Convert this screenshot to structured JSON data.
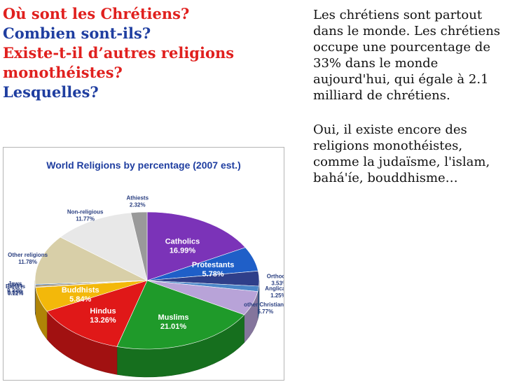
{
  "questions": [
    {
      "text": "Où sont les Chrétiens?",
      "color": "#e0201e"
    },
    {
      "text": "Combien sont-ils?",
      "color": "#1f3ea0"
    },
    {
      "text": "Existe-t-il d’autres religions",
      "color": "#e0201e"
    },
    {
      "text": "monothéistes?",
      "color": "#e0201e"
    },
    {
      "text": "Lesquelles?",
      "color": "#1f3ea0"
    }
  ],
  "answer": {
    "paragraph1": "Les chrétiens sont partout dans le monde. Les chrétiens occupe une pourcentage de 33% dans le monde aujourd'hui, qui égale à 2.1 milliard de chrétiens.",
    "paragraph2": "Oui, il existe encore des religions monothéistes, comme la judaïsme, l'islam, bahá'íe, bouddhisme…"
  },
  "chart_data": {
    "type": "pie",
    "title": "World Religions by percentage (2007 est.)",
    "slices": [
      {
        "label": "Catholics",
        "value": 16.99,
        "display": "16.99%",
        "color": "#7b33b8"
      },
      {
        "label": "Protestants",
        "value": 5.78,
        "display": "5.78%",
        "color": "#1f5fc8"
      },
      {
        "label": "Orthodox",
        "value": 3.53,
        "display": "3.53%",
        "color": "#2f3f8a"
      },
      {
        "label": "Anglicans",
        "value": 1.25,
        "display": "1.25%",
        "color": "#4a86c8"
      },
      {
        "label": "other Christians",
        "value": 5.77,
        "display": "5.77%",
        "color": "#b8a3d8"
      },
      {
        "label": "Muslims",
        "value": 21.01,
        "display": "21.01%",
        "color": "#1f9a2a"
      },
      {
        "label": "Hindus",
        "value": 13.26,
        "display": "13.26%",
        "color": "#e01818"
      },
      {
        "label": "Buddhists",
        "value": 5.84,
        "display": "5.84%",
        "color": "#f3b80a"
      },
      {
        "label": "Baha'is",
        "value": 0.12,
        "display": "0.12%",
        "color": "#3aa0c8"
      },
      {
        "label": "Sikhs",
        "value": 0.35,
        "display": "0.35%",
        "color": "#8a6b3a"
      },
      {
        "label": "Jews",
        "value": 0.23,
        "display": "0.23%",
        "color": "#2060a0"
      },
      {
        "label": "Other religions",
        "value": 11.78,
        "display": "11.78%",
        "color": "#d8cfa8"
      },
      {
        "label": "Non-religious",
        "value": 11.77,
        "display": "11.77%",
        "color": "#e8e8e8"
      },
      {
        "label": "Athiests",
        "value": 2.32,
        "display": "2.32%",
        "color": "#9a9a9a"
      }
    ]
  }
}
